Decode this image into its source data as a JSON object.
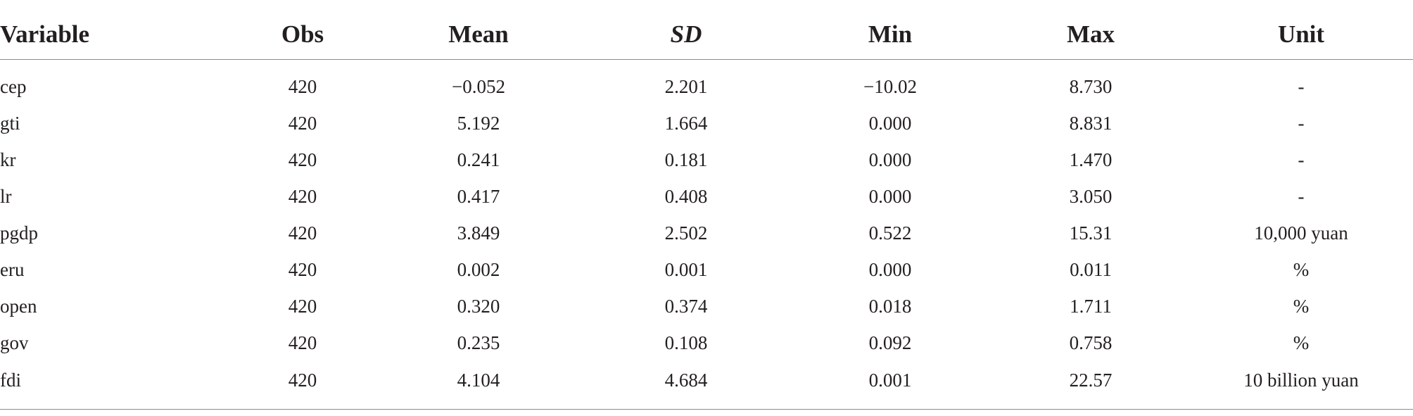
{
  "table": {
    "headers": [
      "Variable",
      "Obs",
      "Mean",
      "SD",
      "Min",
      "Max",
      "Unit"
    ],
    "rows": [
      [
        "cep",
        "420",
        "−0.052",
        "2.201",
        "−10.02",
        "8.730",
        "-"
      ],
      [
        "gti",
        "420",
        "5.192",
        "1.664",
        "0.000",
        "8.831",
        "-"
      ],
      [
        "kr",
        "420",
        "0.241",
        "0.181",
        "0.000",
        "1.470",
        "-"
      ],
      [
        "lr",
        "420",
        "0.417",
        "0.408",
        "0.000",
        "3.050",
        "-"
      ],
      [
        "pgdp",
        "420",
        "3.849",
        "2.502",
        "0.522",
        "15.31",
        "10,000 yuan"
      ],
      [
        "eru",
        "420",
        "0.002",
        "0.001",
        "0.000",
        "0.011",
        "%"
      ],
      [
        "open",
        "420",
        "0.320",
        "0.374",
        "0.018",
        "1.711",
        "%"
      ],
      [
        "gov",
        "420",
        "0.235",
        "0.108",
        "0.092",
        "0.758",
        "%"
      ],
      [
        "fdi",
        "420",
        "4.104",
        "4.684",
        "0.001",
        "22.57",
        "10 billion yuan"
      ]
    ]
  }
}
